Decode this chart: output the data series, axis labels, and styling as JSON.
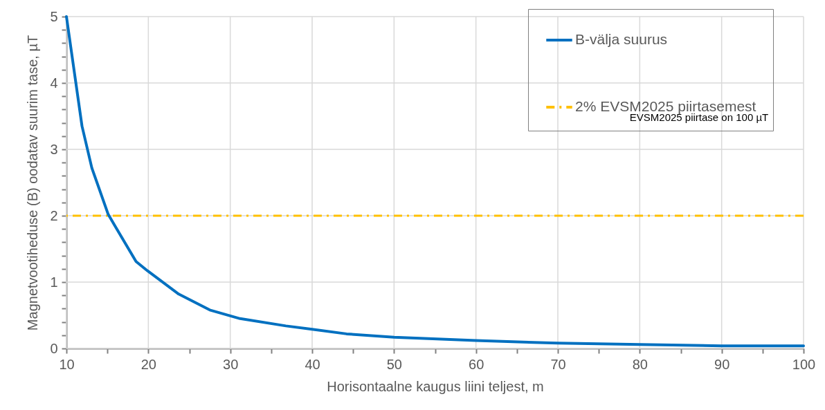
{
  "chart_data": {
    "type": "line",
    "xlabel": "Horisontaalne kaugus liini teljest, m",
    "ylabel": "Magnetvootiheduse  (B) oodatav suurim tase, µT",
    "xlim": [
      10,
      100
    ],
    "ylim": [
      0,
      5
    ],
    "xticks": [
      10,
      {
        "value": 15,
        "label": null
      },
      20,
      {
        "value": 25,
        "label": null
      },
      30,
      {
        "value": 35,
        "label": null
      },
      40,
      {
        "value": 45,
        "label": null
      },
      50,
      {
        "value": 55,
        "label": null
      },
      60,
      {
        "value": 65,
        "label": null
      },
      70,
      {
        "value": 75,
        "label": null
      },
      80,
      {
        "value": 85,
        "label": null
      },
      90,
      {
        "value": 95,
        "label": null
      },
      100
    ],
    "yticks": [
      0,
      {
        "value": 0.2,
        "label": null
      },
      {
        "value": 0.4,
        "label": null
      },
      {
        "value": 0.6,
        "label": null
      },
      {
        "value": 0.8,
        "label": null
      },
      1,
      {
        "value": 1.2,
        "label": null
      },
      {
        "value": 1.4,
        "label": null
      },
      {
        "value": 1.6,
        "label": null
      },
      {
        "value": 1.8,
        "label": null
      },
      2,
      {
        "value": 2.2,
        "label": null
      },
      {
        "value": 2.4,
        "label": null
      },
      {
        "value": 2.6,
        "label": null
      },
      {
        "value": 2.8,
        "label": null
      },
      3,
      {
        "value": 3.2,
        "label": null
      },
      {
        "value": 3.4,
        "label": null
      },
      {
        "value": 3.6,
        "label": null
      },
      {
        "value": 3.8,
        "label": null
      },
      4,
      {
        "value": 4.2,
        "label": null
      },
      {
        "value": 4.4,
        "label": null
      },
      {
        "value": 4.6,
        "label": null
      },
      {
        "value": 4.8,
        "label": null
      },
      5
    ],
    "grid": true,
    "legend": "top right",
    "line_style": "solid",
    "series": [
      {
        "name": "B-välja suurus",
        "color": "#0070c0",
        "x": [
          10,
          11.9,
          13.1,
          15.1,
          16,
          18.5,
          19.9,
          23.7,
          27.5,
          31.2,
          36.8,
          40,
          44.2,
          50,
          60,
          70,
          80,
          90,
          100
        ],
        "values": [
          5,
          3.35,
          2.72,
          2.02,
          1.83,
          1.31,
          1.17,
          0.82,
          0.58,
          0.45,
          0.34,
          0.29,
          0.22,
          0.17,
          0.12,
          0.08,
          0.06,
          0.04,
          0.04
        ]
      }
    ],
    "ref_lines": [
      {
        "axis": "y",
        "value": 2,
        "label": "2% EVSM2025 piirtasemest",
        "color": "#ffc000",
        "line_style": "dashed"
      }
    ],
    "annotations": [
      "EVSM2025 piirtase on 100 µT"
    ]
  }
}
